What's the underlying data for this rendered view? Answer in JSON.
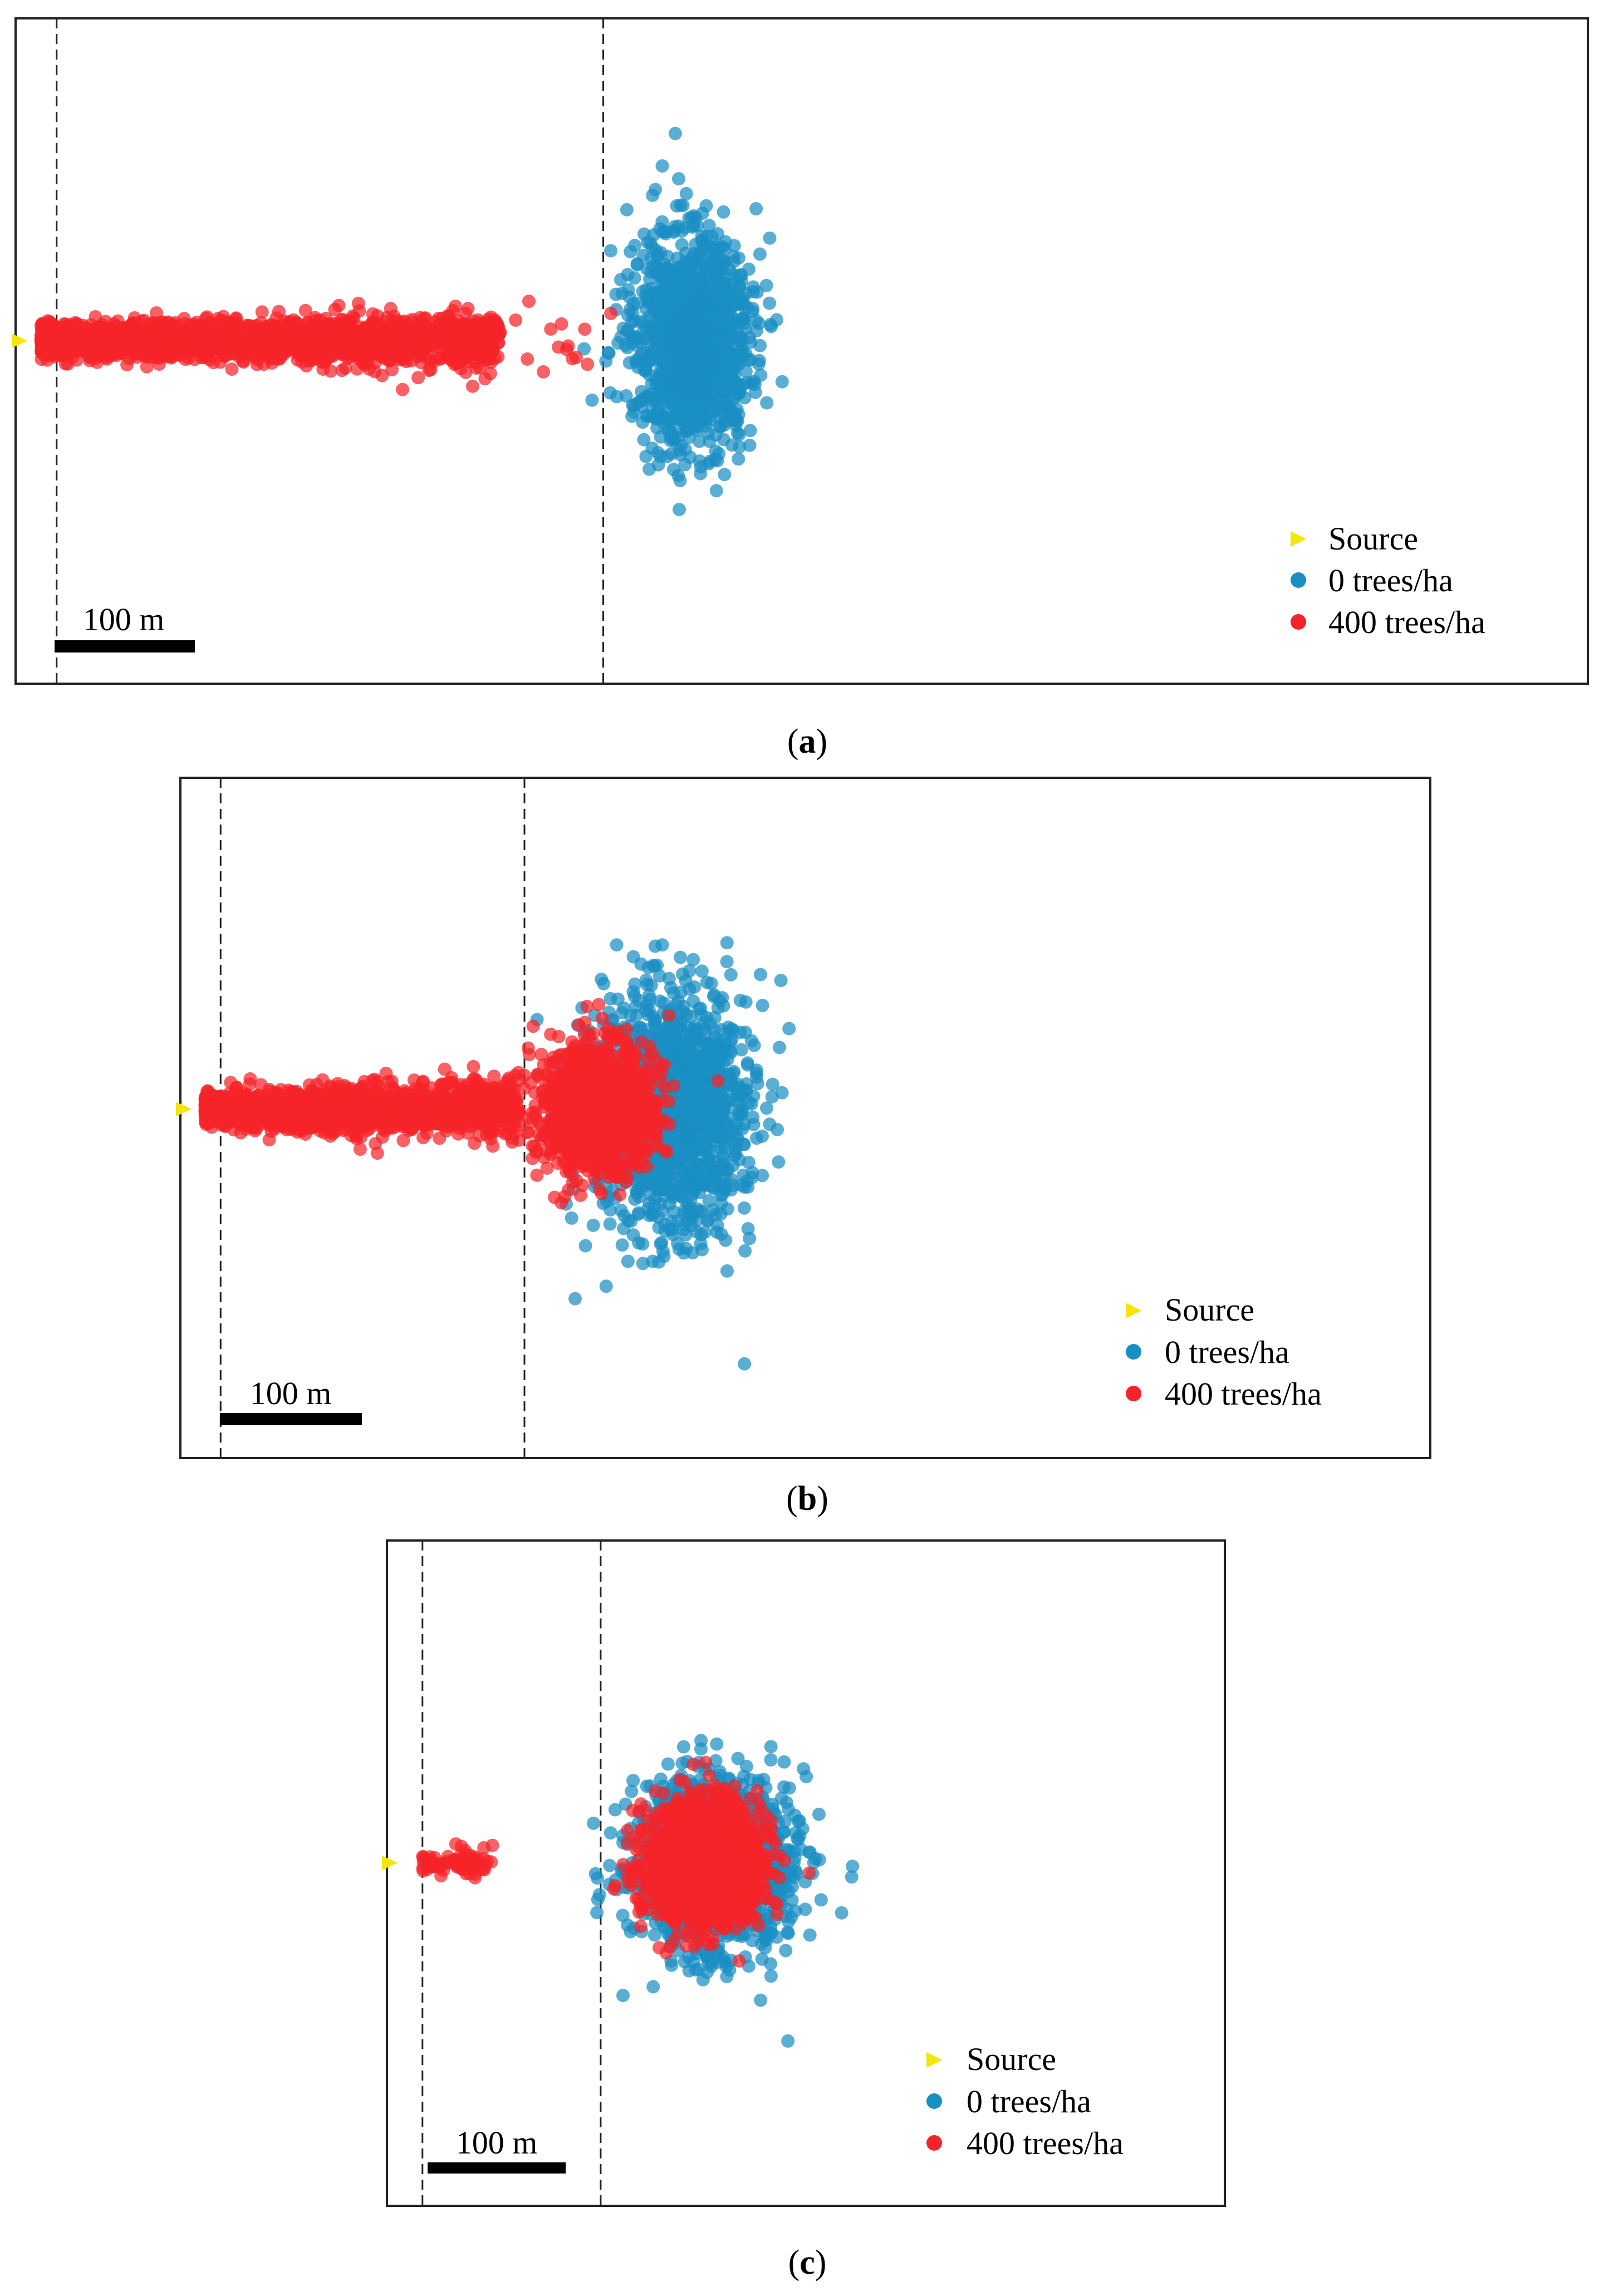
{
  "figure": {
    "panels": [
      {
        "label": "a",
        "scale_bar": "100 m",
        "legend": [
          "Source",
          "0 trees/ha",
          "400 trees/ha"
        ],
        "source": {
          "x": 0,
          "y": 0
        },
        "windbreak_lines": [
          5,
          110
        ],
        "blue_cloud": {
          "cx": 127,
          "cy": 0,
          "sx": 10,
          "sy": 18,
          "n": 1400
        },
        "red_streak": {
          "x0": 2,
          "x1": 90,
          "sy": 3.8,
          "n": 2000,
          "extra": {
            "x0": 85,
            "x1": 112,
            "sy": 6,
            "n": 22
          }
        },
        "red_cloud": null
      },
      {
        "label": "b",
        "scale_bar": "100 m",
        "legend": [
          "Source",
          "0 trees/ha",
          "400 trees/ha"
        ],
        "source": {
          "x": 0,
          "y": 0
        },
        "windbreak_lines": [
          5,
          64
        ],
        "blue_cloud": {
          "cx": 92,
          "cy": 0,
          "sx": 14,
          "sy": 21,
          "n": 1500
        },
        "red_streak": {
          "x0": 2,
          "x1": 63,
          "sy": 4,
          "n": 1800,
          "extra": null
        },
        "red_cloud": {
          "cx": 78,
          "cy": 0,
          "sx": 11,
          "sy": 12,
          "n": 1300
        }
      },
      {
        "label": "c",
        "scale_bar": "100 m",
        "legend": [
          "Source",
          "0 trees/ha",
          "400 trees/ha"
        ],
        "source": {
          "x": 0,
          "y": 0
        },
        "windbreak_lines": [
          4,
          37
        ],
        "blue_cloud": {
          "cx": 58,
          "cy": 0,
          "sx": 13,
          "sy": 14,
          "n": 1500
        },
        "red_streak": {
          "x0": 4,
          "x1": 17,
          "sy": 2.5,
          "n": 70,
          "extra": null
        },
        "red_cloud": {
          "cx": 56,
          "cy": 0,
          "sx": 11,
          "sy": 11,
          "n": 1500
        }
      }
    ]
  },
  "chart_data": [
    {
      "type": "scatter",
      "panel": "(a)",
      "title": "",
      "xlabel": "",
      "ylabel": "",
      "scale_bar_m": 100,
      "legend_placement": "bottom-right",
      "series": [
        {
          "name": "Source",
          "color": "#f5e50a",
          "points": [
            [
              0,
              0
            ]
          ]
        },
        {
          "name": "0 trees/ha",
          "color": "#1a8fc4",
          "description_range_x_m": [
            112,
            145
          ],
          "center_m": [
            127,
            0
          ]
        },
        {
          "name": "400 trees/ha",
          "color": "#f5242a",
          "description_range_x_m": [
            2,
            112
          ],
          "center_m": [
            45,
            0
          ]
        }
      ]
    },
    {
      "type": "scatter",
      "panel": "(b)",
      "title": "",
      "xlabel": "",
      "ylabel": "",
      "scale_bar_m": 100,
      "legend_placement": "bottom-right",
      "series": [
        {
          "name": "Source",
          "color": "#f5e50a",
          "points": [
            [
              0,
              0
            ]
          ]
        },
        {
          "name": "0 trees/ha",
          "color": "#1a8fc4",
          "center_m": [
            92,
            0
          ]
        },
        {
          "name": "400 trees/ha",
          "color": "#f5242a",
          "center_m": [
            60,
            0
          ]
        }
      ]
    },
    {
      "type": "scatter",
      "panel": "(c)",
      "title": "",
      "xlabel": "",
      "ylabel": "",
      "scale_bar_m": 100,
      "legend_placement": "bottom-right",
      "series": [
        {
          "name": "Source",
          "color": "#f5e50a",
          "points": [
            [
              0,
              0
            ]
          ]
        },
        {
          "name": "0 trees/ha",
          "color": "#1a8fc4",
          "center_m": [
            58,
            0
          ]
        },
        {
          "name": "400 trees/ha",
          "color": "#f5242a",
          "center_m": [
            56,
            0
          ]
        }
      ]
    }
  ],
  "colors": {
    "blue": "#1a8fc4",
    "red": "#f5242a",
    "yellow": "#f5e50a",
    "frame": "#222222"
  }
}
